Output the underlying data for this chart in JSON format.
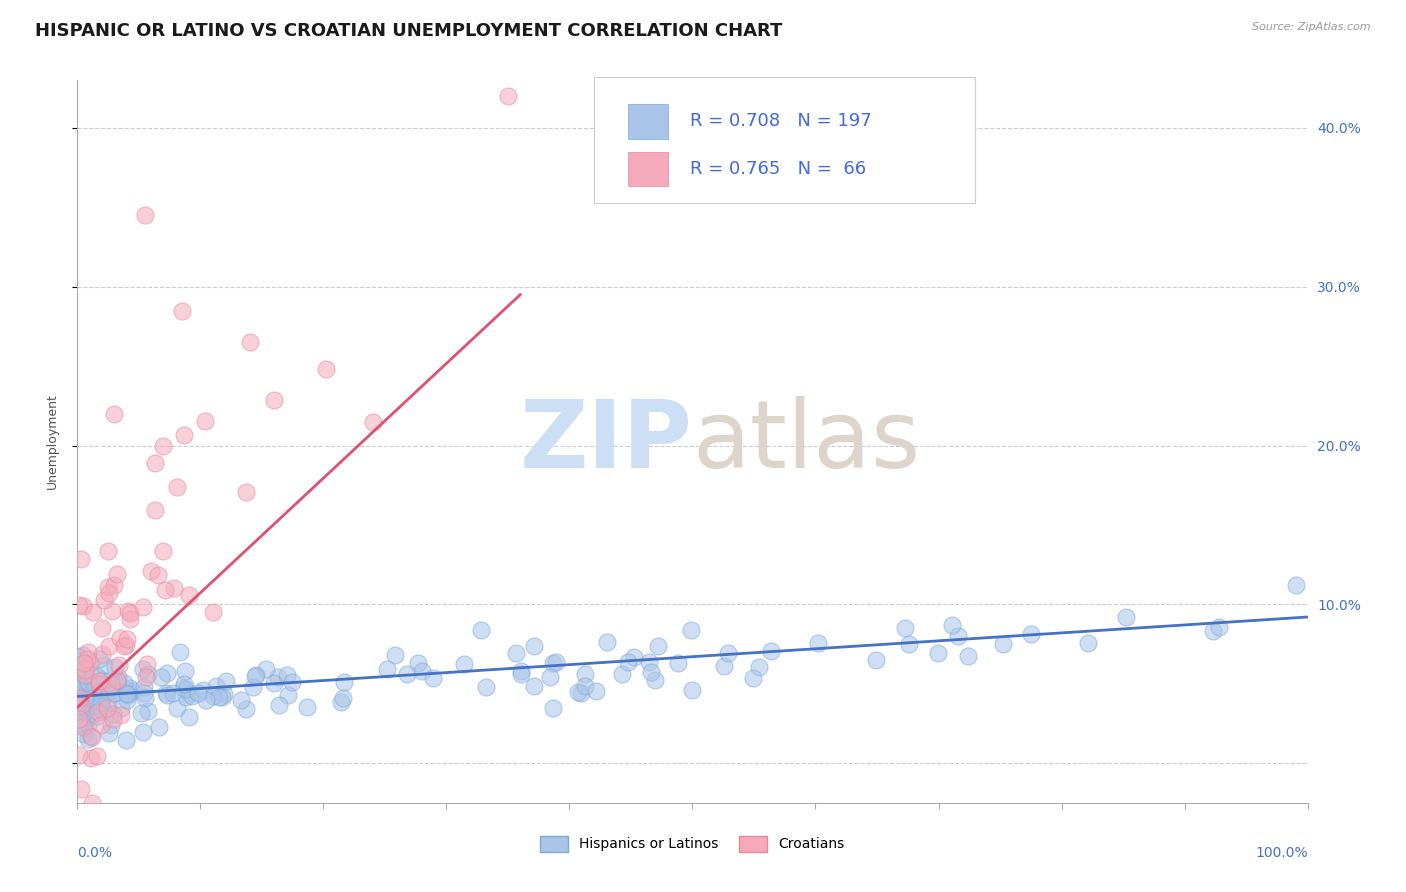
{
  "title": "HISPANIC OR LATINO VS CROATIAN UNEMPLOYMENT CORRELATION CHART",
  "source_text": "Source: ZipAtlas.com",
  "ylabel": "Unemployment",
  "y_tick_labels": [
    "",
    "10.0%",
    "20.0%",
    "30.0%",
    "40.0%"
  ],
  "y_tick_values": [
    0,
    0.1,
    0.2,
    0.3,
    0.4
  ],
  "x_range": [
    0,
    1.0
  ],
  "y_range": [
    -0.025,
    0.43
  ],
  "blue_R": 0.708,
  "blue_N": 197,
  "pink_R": 0.765,
  "pink_N": 66,
  "blue_color": "#a8c4e8",
  "pink_color": "#f5aabb",
  "blue_edge_color": "#7aaad8",
  "pink_edge_color": "#e88898",
  "blue_line_color": "#4472c4",
  "pink_line_color": "#e05070",
  "legend_color": "#4169e1",
  "legend_N_color": "#222222",
  "background_color": "#ffffff",
  "grid_color": "#cccccc",
  "title_fontsize": 13,
  "axis_label_fontsize": 10,
  "legend_fontsize": 13
}
